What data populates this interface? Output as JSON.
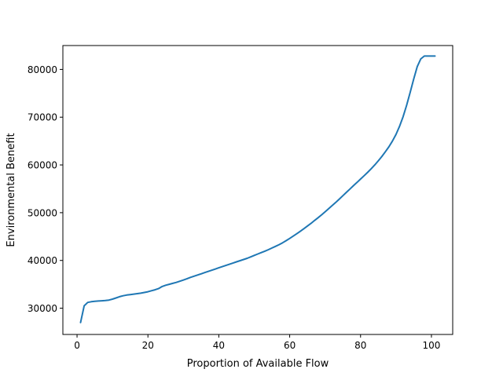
{
  "chart_data": {
    "type": "line",
    "title": "",
    "xlabel": "Proportion of Available Flow",
    "ylabel": "Environmental Benefit",
    "xlim": [
      -4,
      106
    ],
    "ylim": [
      24500,
      85000
    ],
    "xticks": [
      0,
      20,
      40,
      60,
      80,
      100
    ],
    "yticks": [
      30000,
      40000,
      50000,
      60000,
      70000,
      80000
    ],
    "grid": false,
    "legend": "none",
    "series": [
      {
        "color": "#1f77b4",
        "x": [
          1,
          2,
          3,
          4,
          5,
          6,
          7,
          8,
          9,
          10,
          11,
          12,
          13,
          14,
          15,
          16,
          17,
          18,
          19,
          20,
          21,
          22,
          23,
          24,
          25,
          26,
          27,
          28,
          29,
          30,
          31,
          32,
          33,
          34,
          35,
          36,
          37,
          38,
          39,
          40,
          41,
          42,
          43,
          44,
          45,
          46,
          47,
          48,
          49,
          50,
          51,
          52,
          53,
          54,
          55,
          56,
          57,
          58,
          59,
          60,
          61,
          62,
          63,
          64,
          65,
          66,
          67,
          68,
          69,
          70,
          71,
          72,
          73,
          74,
          75,
          76,
          77,
          78,
          79,
          80,
          81,
          82,
          83,
          84,
          85,
          86,
          87,
          88,
          89,
          90,
          91,
          92,
          93,
          94,
          95,
          96,
          97,
          98,
          99,
          100,
          101
        ],
        "values": [
          27000,
          30500,
          31200,
          31350,
          31450,
          31500,
          31550,
          31600,
          31700,
          31900,
          32150,
          32400,
          32600,
          32750,
          32850,
          32950,
          33050,
          33150,
          33300,
          33450,
          33650,
          33850,
          34100,
          34550,
          34800,
          35000,
          35200,
          35400,
          35650,
          35900,
          36150,
          36450,
          36700,
          36950,
          37200,
          37450,
          37700,
          37950,
          38200,
          38450,
          38700,
          38950,
          39200,
          39450,
          39700,
          39950,
          40200,
          40450,
          40750,
          41050,
          41350,
          41650,
          41950,
          42250,
          42600,
          42950,
          43300,
          43700,
          44150,
          44600,
          45100,
          45600,
          46100,
          46650,
          47200,
          47750,
          48350,
          48950,
          49550,
          50200,
          50850,
          51500,
          52150,
          52850,
          53550,
          54250,
          54950,
          55650,
          56350,
          57050,
          57750,
          58450,
          59200,
          60000,
          60850,
          61750,
          62750,
          63800,
          65000,
          66400,
          68100,
          70100,
          72500,
          75200,
          78000,
          80600,
          82200,
          82800,
          82800,
          82800,
          82800
        ]
      }
    ]
  }
}
